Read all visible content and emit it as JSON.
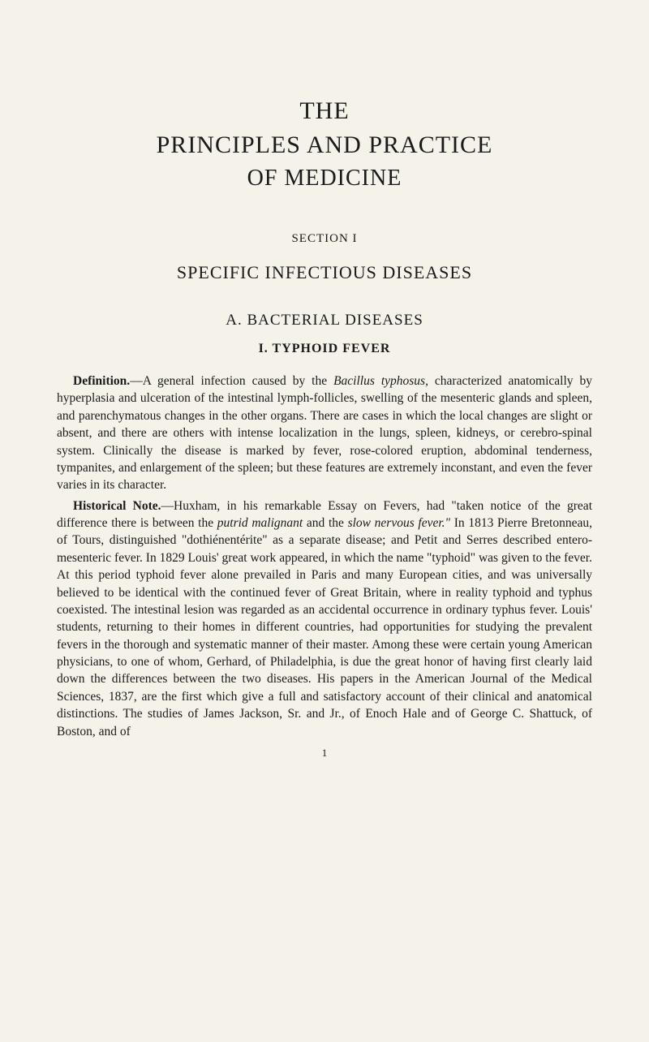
{
  "title": {
    "line1": "THE",
    "line2": "PRINCIPLES AND PRACTICE",
    "line3": "OF MEDICINE"
  },
  "section": {
    "number": "SECTION I",
    "title": "SPECIFIC INFECTIOUS DISEASES"
  },
  "subsection": {
    "title": "A. BACTERIAL DISEASES"
  },
  "chapter": {
    "title": "I. TYPHOID FEVER"
  },
  "para1": {
    "lead": "Definition.",
    "text1": "—A general infection caused by the ",
    "italic1": "Bacillus typhosus,",
    "text2": " charac­terized anatomically by hyperplasia and ulceration of the intestinal lymph-follicles, swelling of the mesenteric glands and spleen, and parenchymatous changes in the other organs. There are cases in which the local changes are slight or absent, and there are others with intense localization in the lungs, spleen, kidneys, or cerebro-spinal system. Clinically the disease is marked by fever, rose-colored eruption, abdominal tenderness, tympanites, and enlarge­ment of the spleen; but these features are extremely inconstant, and even the fever varies in its character."
  },
  "para2": {
    "lead": "Historical Note.",
    "text1": "—Huxham, in his remarkable Essay on Fevers, had \"taken notice of the great difference there is between the ",
    "italic1": "putrid malignant",
    "text2": " and the ",
    "italic2": "slow nervous fever.\"",
    "text3": " In 1813 Pierre Bretonneau, of Tours, distinguished \"dothiénentérite\" as a separate disease; and Petit and Serres described entero-mesenteric fever. In 1829 Louis' great work appeared, in which the name \"typhoid\" was given to the fever. At this period typhoid fever alone pre­vailed in Paris and many European cities, and was universally believed to be identical with the continued fever of Great Britain, where in reality typhoid and typhus coexisted. The intestinal lesion was regarded as an accidental occurrence in ordinary typhus fever. Louis' students, returning to their homes in different countries, had opportunities for studying the prevalent fevers in the thorough and systematic manner of their master. Among these were certain young American physicians, to one of whom, Gerhard, of Philadelphia, is due the great honor of having first clearly laid down the differences be­tween the two diseases. His papers in the American Journal of the Medical Sciences, 1837, are the first which give a full and satisfactory account of their clinical and anatomical distinctions. The studies of James Jackson, Sr. and Jr., of Enoch Hale and of George C. Shattuck, of Boston, and of"
  },
  "pageNumber": "1"
}
